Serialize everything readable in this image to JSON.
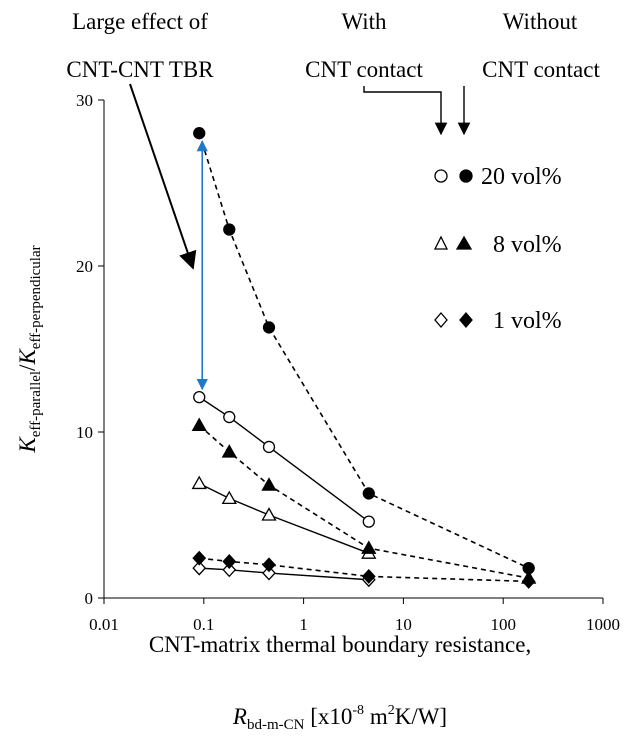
{
  "annotations": {
    "large_effect_line1": "Large effect of",
    "large_effect_line2": "CNT-CNT TBR",
    "with_line1": "With",
    "with_line2": "CNT contact",
    "without_line1": "Without",
    "without_line2": "CNT contact"
  },
  "colors": {
    "double_arrow": "#1f78c8",
    "line": "#000000"
  },
  "chart_data": {
    "type": "scatter",
    "x_scale": "log",
    "xlim": [
      0.01,
      1000
    ],
    "ylim": [
      0,
      30
    ],
    "x_ticks": [
      0.01,
      0.1,
      1,
      10,
      100,
      1000
    ],
    "x_tick_labels": [
      "0.01",
      "0.1",
      "1",
      "10",
      "100",
      "1000"
    ],
    "y_ticks": [
      0,
      10,
      20,
      30
    ],
    "y_tick_labels": [
      "0",
      "10",
      "20",
      "30"
    ],
    "xlabel_line1": "CNT-matrix thermal boundary resistance,",
    "xlabel_line2": {
      "symbol": "R",
      "subscript": "bd-m-CN",
      "bracket_open": " [x10",
      "exponent": "-8",
      "units_mid": " m",
      "units_exp": "2",
      "units_tail": "K/W]"
    },
    "ylabel": {
      "num_symbol": "K",
      "num_sub": "eff-parallel",
      "slash": "/",
      "den_symbol": "K",
      "den_sub": "eff-perpendicular"
    },
    "legend": [
      {
        "label": "20 vol%",
        "marker": "circle"
      },
      {
        "label": "8 vol%",
        "marker": "triangle"
      },
      {
        "label": "1 vol%",
        "marker": "diamond"
      }
    ],
    "series": [
      {
        "volume": "20 vol%",
        "contact": "with",
        "marker": "circle",
        "filled": false,
        "line": "solid",
        "x": [
          0.09,
          0.18,
          0.45,
          4.5
        ],
        "y": [
          12.1,
          10.9,
          9.1,
          4.6
        ]
      },
      {
        "volume": "20 vol%",
        "contact": "without",
        "marker": "circle",
        "filled": true,
        "line": "dashed",
        "x": [
          0.09,
          0.18,
          0.45,
          4.5,
          180
        ],
        "y": [
          28.0,
          22.2,
          16.3,
          6.3,
          1.8
        ]
      },
      {
        "volume": "8 vol%",
        "contact": "with",
        "marker": "triangle",
        "filled": false,
        "line": "solid",
        "x": [
          0.09,
          0.18,
          0.45,
          4.5
        ],
        "y": [
          6.9,
          6.0,
          5.0,
          2.7
        ]
      },
      {
        "volume": "8 vol%",
        "contact": "without",
        "marker": "triangle",
        "filled": true,
        "line": "dashed",
        "x": [
          0.09,
          0.18,
          0.45,
          4.5,
          180
        ],
        "y": [
          10.4,
          8.8,
          6.8,
          3.0,
          1.2
        ]
      },
      {
        "volume": "1 vol%",
        "contact": "with",
        "marker": "diamond",
        "filled": false,
        "line": "solid",
        "x": [
          0.09,
          0.18,
          0.45,
          4.5
        ],
        "y": [
          1.8,
          1.7,
          1.5,
          1.1
        ]
      },
      {
        "volume": "1 vol%",
        "contact": "without",
        "marker": "diamond",
        "filled": true,
        "line": "dashed",
        "x": [
          0.09,
          0.18,
          0.45,
          4.5,
          180
        ],
        "y": [
          2.4,
          2.2,
          2.0,
          1.3,
          1.0
        ]
      }
    ],
    "double_arrow": {
      "x": 0.09,
      "y_from": 12.1,
      "y_to": 28.0
    }
  }
}
